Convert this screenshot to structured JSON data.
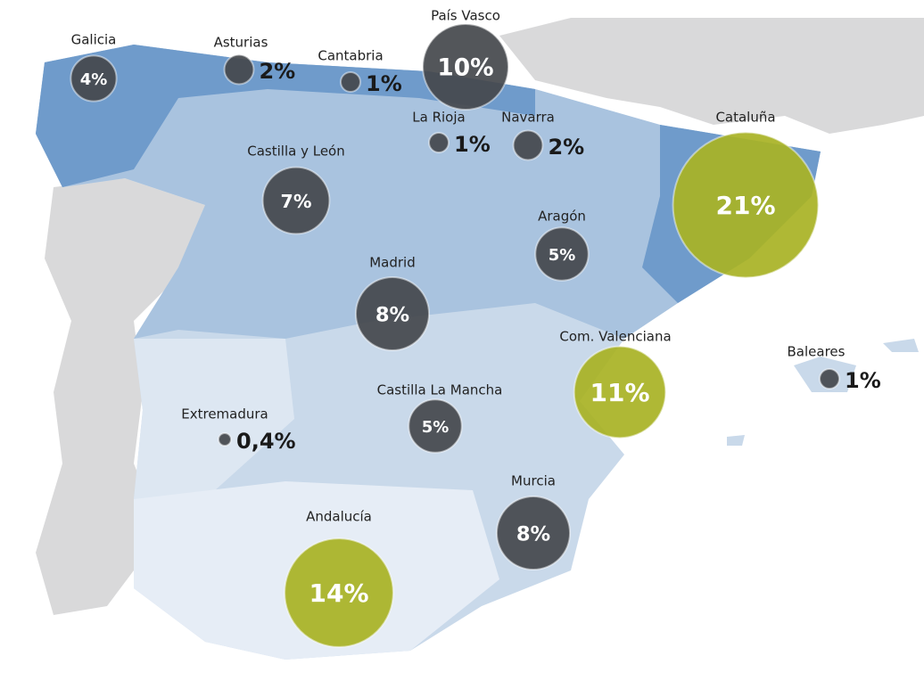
{
  "chart_data": {
    "type": "bubble_map",
    "categories": [
      "Galicia",
      "Asturias",
      "Cantabria",
      "País Vasco",
      "La Rioja",
      "Navarra",
      "Castilla y León",
      "Cataluña",
      "Aragón",
      "Madrid",
      "Com. Valenciana",
      "Baleares",
      "Castilla La Mancha",
      "Extremadura",
      "Murcia",
      "Andalucía"
    ],
    "values": [
      4,
      2,
      1,
      10,
      1,
      2,
      7,
      21,
      5,
      8,
      11,
      1,
      5,
      0.4,
      8,
      14
    ],
    "value_labels": [
      "4%",
      "2%",
      "1%",
      "10%",
      "1%",
      "2%",
      "7%",
      "21%",
      "5%",
      "8%",
      "11%",
      "1%",
      "5%",
      "0,4%",
      "8%",
      "14%"
    ],
    "colors": [
      "#45484d",
      "#45484d",
      "#45484d",
      "#45484d",
      "#45484d",
      "#45484d",
      "#45484d",
      "#a9b324",
      "#45484d",
      "#45484d",
      "#a9b324",
      "#45484d",
      "#45484d",
      "#45484d",
      "#45484d",
      "#a9b324"
    ]
  }
}
